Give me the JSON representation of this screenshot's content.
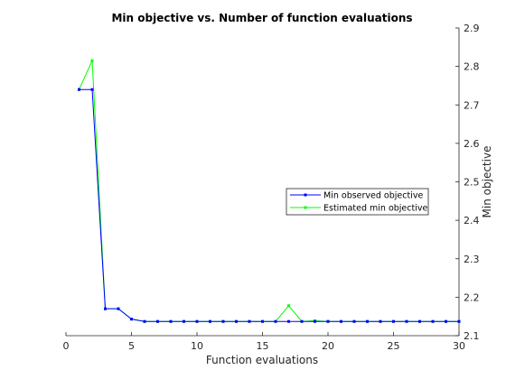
{
  "chart_data": {
    "type": "line",
    "title": "Min objective vs. Number of function evaluations",
    "xlabel": "Function evaluations",
    "ylabel": "Min objective",
    "xlim": [
      0,
      30
    ],
    "ylim": [
      2.1,
      2.9
    ],
    "xticks": [
      0,
      5,
      10,
      15,
      20,
      25,
      30
    ],
    "yticks": [
      2.1,
      2.2,
      2.3,
      2.4,
      2.5,
      2.6,
      2.7,
      2.8,
      2.9
    ],
    "y_axis_side": "right",
    "grid": false,
    "legend_position": "right-middle",
    "series": [
      {
        "name": "Min observed objective",
        "color": "#0000ff",
        "marker": "dot",
        "x": [
          1,
          2,
          3,
          4,
          5,
          6,
          7,
          8,
          9,
          10,
          11,
          12,
          13,
          14,
          15,
          16,
          17,
          18,
          19,
          20,
          21,
          22,
          23,
          24,
          25,
          26,
          27,
          28,
          29,
          30
        ],
        "y": [
          2.74,
          2.74,
          2.17,
          2.17,
          2.143,
          2.137,
          2.137,
          2.137,
          2.137,
          2.137,
          2.137,
          2.137,
          2.137,
          2.137,
          2.137,
          2.137,
          2.137,
          2.137,
          2.137,
          2.137,
          2.137,
          2.137,
          2.137,
          2.137,
          2.137,
          2.137,
          2.137,
          2.137,
          2.137,
          2.137
        ]
      },
      {
        "name": "Estimated min objective",
        "color": "#00ff00",
        "marker": "dot",
        "x": [
          1,
          2,
          3,
          4,
          5,
          6,
          7,
          8,
          9,
          10,
          11,
          12,
          13,
          14,
          15,
          16,
          17,
          18,
          19,
          20,
          21,
          22,
          23,
          24,
          25,
          26,
          27,
          28,
          29,
          30
        ],
        "y": [
          2.74,
          2.815,
          2.17,
          2.17,
          2.143,
          2.137,
          2.137,
          2.137,
          2.137,
          2.137,
          2.137,
          2.137,
          2.137,
          2.137,
          2.137,
          2.137,
          2.178,
          2.137,
          2.139,
          2.137,
          2.137,
          2.137,
          2.137,
          2.137,
          2.137,
          2.137,
          2.137,
          2.137,
          2.137,
          2.137
        ]
      }
    ]
  }
}
